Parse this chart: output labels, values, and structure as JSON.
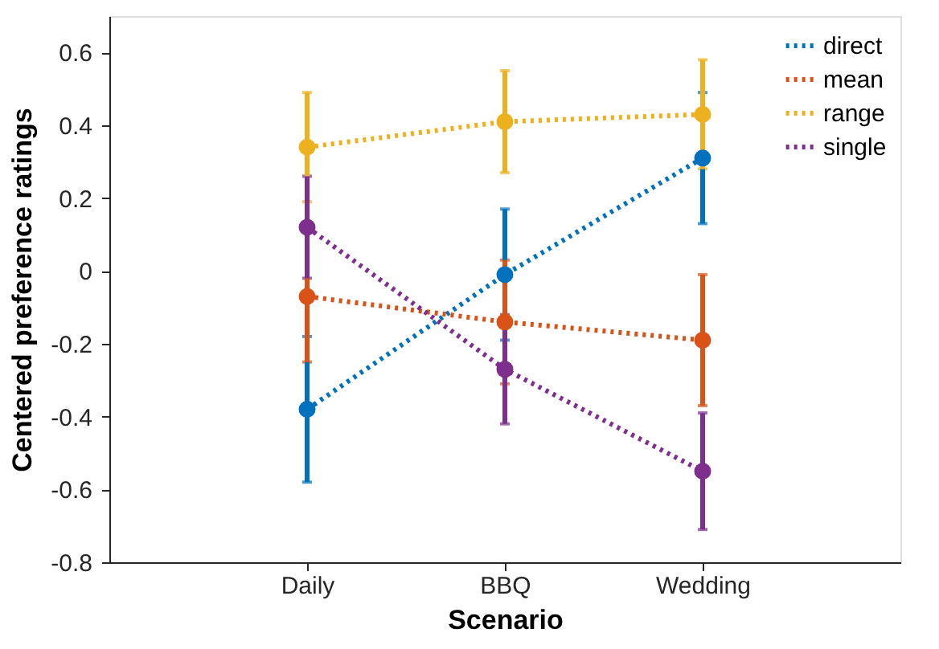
{
  "chart_data": {
    "type": "line",
    "xlabel": "Scenario",
    "ylabel": "Centered preference ratings",
    "categories": [
      "Daily",
      "BBQ",
      "Wedding"
    ],
    "series": [
      {
        "name": "direct",
        "color": "#0072bd",
        "values": [
          -0.38,
          -0.01,
          0.31
        ],
        "errors": [
          0.2,
          0.18,
          0.18
        ]
      },
      {
        "name": "mean",
        "color": "#d95319",
        "values": [
          -0.07,
          -0.14,
          -0.19
        ],
        "errors": [
          0.18,
          0.17,
          0.18
        ]
      },
      {
        "name": "range",
        "color": "#edb120",
        "values": [
          0.34,
          0.41,
          0.43
        ],
        "errors": [
          0.15,
          0.14,
          0.15
        ]
      },
      {
        "name": "single",
        "color": "#7e2f8e",
        "values": [
          0.12,
          -0.27,
          -0.55
        ],
        "errors": [
          0.14,
          0.15,
          0.16
        ]
      }
    ],
    "ylim": [
      -0.8,
      0.7
    ],
    "yticks": [
      -0.8,
      -0.6,
      -0.4,
      -0.2,
      0,
      0.2,
      0.4,
      0.6
    ],
    "grid": false,
    "legend": "top right",
    "marker": "circle",
    "line_style": "dotted"
  }
}
